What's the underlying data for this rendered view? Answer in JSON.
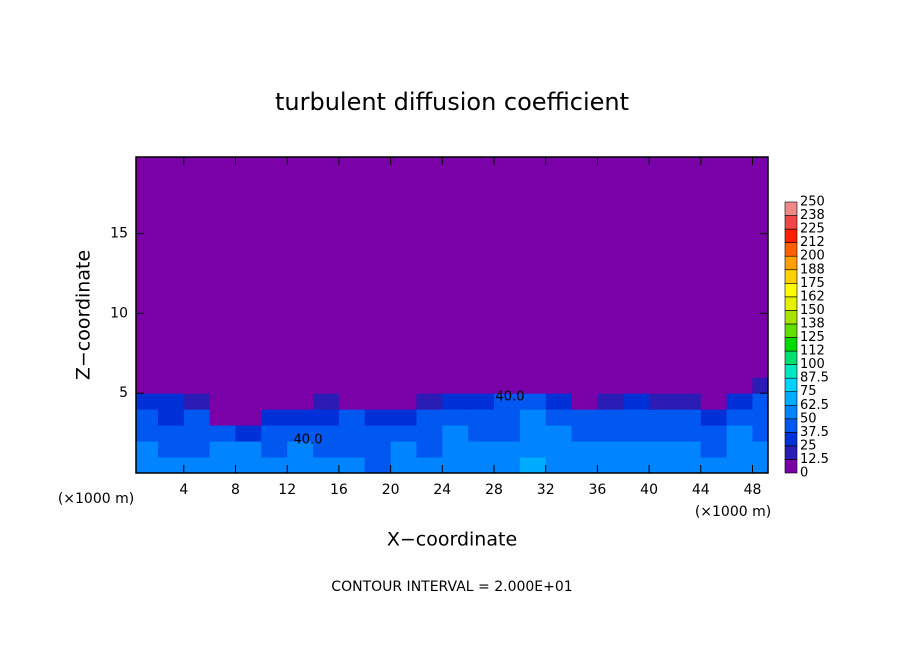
{
  "chart_data": {
    "type": "heatmap",
    "title": "turbulent diffusion coefficient",
    "xlabel": "X−coordinate",
    "ylabel": "Z−coordinate",
    "x_unit": "(×1000 m)",
    "footer": "CONTOUR INTERVAL = 2.000E+01",
    "annotations": [
      "40.0",
      "40.0"
    ],
    "xlim": [
      0.3,
      49.2
    ],
    "ylim": [
      0,
      19.8
    ],
    "xticks": [
      4,
      8,
      12,
      16,
      20,
      24,
      28,
      32,
      36,
      40,
      44,
      48
    ],
    "yticks": [
      5,
      10,
      15
    ],
    "x_edges": [
      0,
      2,
      4,
      6,
      8,
      10,
      12,
      14,
      16,
      18,
      20,
      22,
      24,
      26,
      28,
      30,
      32,
      34,
      36,
      38,
      40,
      42,
      44,
      46,
      48,
      50
    ],
    "z_edges": [
      0,
      1,
      2,
      3,
      4,
      5,
      6,
      20
    ],
    "values": [
      [
        55,
        50,
        50,
        60,
        60,
        55,
        60,
        55,
        50,
        45,
        50,
        50,
        55,
        60,
        55,
        65,
        60,
        55,
        60,
        60,
        55,
        60,
        55,
        60,
        55
      ],
      [
        50,
        45,
        40,
        55,
        50,
        45,
        50,
        45,
        45,
        40,
        50,
        45,
        55,
        55,
        50,
        60,
        55,
        50,
        50,
        55,
        50,
        50,
        45,
        55,
        50
      ],
      [
        45,
        40,
        45,
        40,
        35,
        40,
        45,
        40,
        45,
        40,
        40,
        45,
        50,
        45,
        45,
        55,
        50,
        45,
        45,
        45,
        45,
        45,
        40,
        50,
        45
      ],
      [
        40,
        35,
        40,
        10,
        5,
        30,
        35,
        35,
        40,
        35,
        35,
        40,
        45,
        45,
        40,
        50,
        45,
        40,
        40,
        40,
        40,
        40,
        35,
        45,
        45
      ],
      [
        30,
        25,
        20,
        0,
        0,
        0,
        5,
        15,
        10,
        10,
        10,
        15,
        25,
        30,
        40,
        45,
        30,
        10,
        20,
        30,
        20,
        15,
        10,
        25,
        40
      ],
      [
        10,
        5,
        0,
        0,
        0,
        0,
        0,
        0,
        0,
        0,
        0,
        0,
        5,
        5,
        10,
        10,
        5,
        0,
        0,
        0,
        0,
        0,
        0,
        0,
        15
      ],
      [
        0,
        0,
        0,
        0,
        0,
        0,
        0,
        0,
        0,
        0,
        0,
        0,
        0,
        0,
        0,
        0,
        0,
        0,
        0,
        0,
        0,
        0,
        0,
        0,
        0
      ]
    ],
    "levels": [
      0,
      12.5,
      25,
      37.5,
      50,
      62.5,
      75,
      87.5,
      100,
      {
        "value": 112.5,
        "label": "112"
      },
      125,
      {
        "value": 137.5,
        "label": "138"
      },
      150,
      {
        "value": 162.5,
        "label": "162"
      },
      175,
      {
        "value": 187.5,
        "label": "188"
      },
      200,
      {
        "value": 212.5,
        "label": "212"
      },
      225,
      {
        "value": 237.5,
        "label": "238"
      },
      250
    ],
    "colors": [
      "#7a00a8",
      "#2a1cb4",
      "#0030d8",
      "#0058f0",
      "#0084ff",
      "#00acff",
      "#00d2ff",
      "#00e8c0",
      "#00e070",
      "#00dc00",
      "#60e000",
      "#a8e400",
      "#e4f000",
      "#ffff00",
      "#ffd000",
      "#ffa000",
      "#ff6000",
      "#ff2000",
      "#f04848",
      "#f08888"
    ]
  }
}
